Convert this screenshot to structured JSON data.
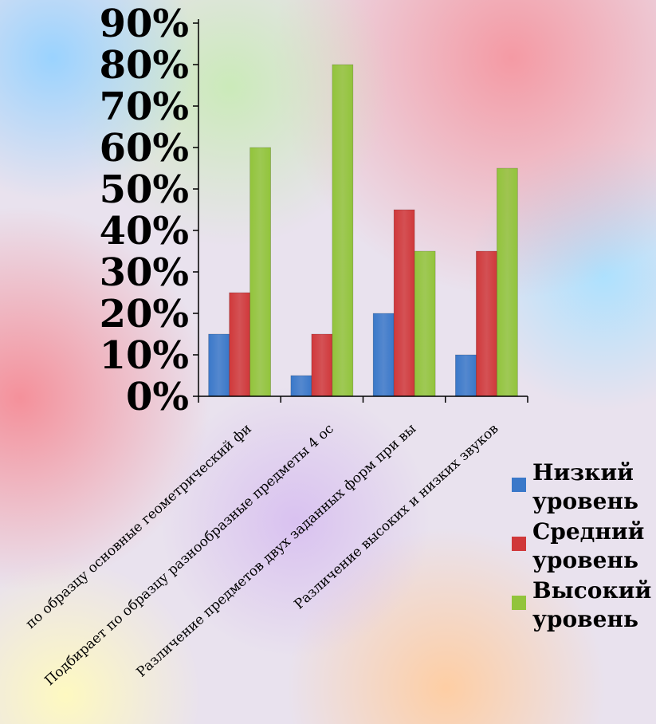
{
  "chart_data": {
    "type": "bar",
    "categories": [
      "по образцу основные геометрический фи",
      "Подбирает по образцу разнообразные предметы 4 ос",
      "Различение предметов двух заданных форм при вы",
      "Различение высоких и низких звуков"
    ],
    "y_ticks": [
      "0%",
      "10%",
      "20%",
      "30%",
      "40%",
      "50%",
      "60%",
      "70%",
      "80%",
      "90%"
    ],
    "ylim": [
      0,
      90
    ],
    "series": [
      {
        "name": "Низкий уровень",
        "color": "#3a78c9",
        "values": [
          15,
          5,
          20,
          10
        ]
      },
      {
        "name": "Средний уровень",
        "color": "#d0383a",
        "values": [
          25,
          15,
          45,
          35
        ]
      },
      {
        "name": "Высокий уровень",
        "color": "#92c43b",
        "values": [
          60,
          80,
          35,
          55
        ]
      }
    ],
    "legend_position": "right",
    "grid": false
  }
}
